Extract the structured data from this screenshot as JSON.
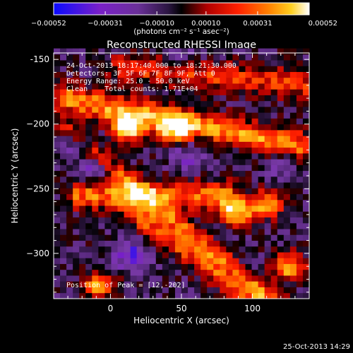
{
  "chart_data": {
    "type": "heatmap",
    "title": "Reconstructed RHESSI Image",
    "xlabel": "Heliocentric X (arcsec)",
    "ylabel": "Heliocentric Y (arcsec)",
    "xlim": [
      -40,
      140
    ],
    "ylim": [
      -335,
      -145
    ],
    "x_ticks": [
      {
        "value": 0,
        "label": "0"
      },
      {
        "value": 50,
        "label": "50"
      },
      {
        "value": 100,
        "label": "100"
      }
    ],
    "y_ticks": [
      {
        "value": -150,
        "label": "-150"
      },
      {
        "value": -200,
        "label": "−200"
      },
      {
        "value": -250,
        "label": "−250"
      },
      {
        "value": -300,
        "label": "−300"
      }
    ],
    "colorbar": {
      "range": [
        -0.00052,
        0.00052
      ],
      "ticks": [
        {
          "value": -0.00052,
          "label": "−0.00052"
        },
        {
          "value": -0.00031,
          "label": "−0.00031"
        },
        {
          "value": -0.0001,
          "label": "−0.00010"
        },
        {
          "value": 0.0001,
          "label": "0.00010"
        },
        {
          "value": 0.00031,
          "label": "0.00031"
        },
        {
          "value": 0.00052,
          "label": "0.00052"
        }
      ],
      "unit_label": "(photons cm⁻² s⁻¹ asec⁻²)",
      "colormap": [
        "#0a0aff",
        "#7a20c8",
        "#7a3aa8",
        "#5a2a80",
        "#000000",
        "#b00000",
        "#ff2000",
        "#ff8000",
        "#ffd020",
        "#ffffff"
      ]
    },
    "annotations": [
      "24-Oct-2013 18:17:40.000 to 18:21:30.000",
      "Detectors: 3F 5F 6F 7F 8F 9F, Att 0",
      "Energy Range: 25.0 - 50.0 keV",
      "Clean    Total counts: 1.71E+04"
    ],
    "peak_label": "Position of Peak = [12,-202]",
    "bands": [
      {
        "y": -198,
        "x_from": -30,
        "x_to": 130,
        "value": 0.00043,
        "slope": -0.22
      },
      {
        "y": -255,
        "x_from": -20,
        "x_to": 80,
        "value": 0.00038,
        "slope": 0.0
      },
      {
        "y": -285,
        "x_from": -25,
        "x_to": 140,
        "value": 0.00033,
        "slope": -0.9
      },
      {
        "y": -163,
        "x_from": 10,
        "x_to": 140,
        "value": 0.00028,
        "slope": -0.1
      },
      {
        "y": -320,
        "x_from": 20,
        "x_to": 140,
        "value": 0.0003,
        "slope": -0.8
      }
    ],
    "blobs": [
      {
        "x": 12,
        "y": -202,
        "value": 0.00052
      },
      {
        "x": 45,
        "y": -203,
        "value": 0.0004
      },
      {
        "x": 88,
        "y": -268,
        "value": 0.00042
      },
      {
        "x": 110,
        "y": -262,
        "value": 0.00035
      },
      {
        "x": 125,
        "y": -310,
        "value": 0.00038
      },
      {
        "x": -8,
        "y": -325,
        "value": 0.00033
      },
      {
        "x": -25,
        "y": -215,
        "value": -0.00042
      },
      {
        "x": -10,
        "y": -235,
        "value": -0.0004
      },
      {
        "x": 15,
        "y": -302,
        "value": -0.00046
      },
      {
        "x": 55,
        "y": -225,
        "value": -0.00032
      },
      {
        "x": 120,
        "y": -232,
        "value": -0.0003
      },
      {
        "x": 50,
        "y": -148,
        "value": -0.00028
      },
      {
        "x": 90,
        "y": -312,
        "value": -0.00022
      }
    ]
  },
  "footer": {
    "timestamp": "25-Oct-2013 14:29"
  }
}
